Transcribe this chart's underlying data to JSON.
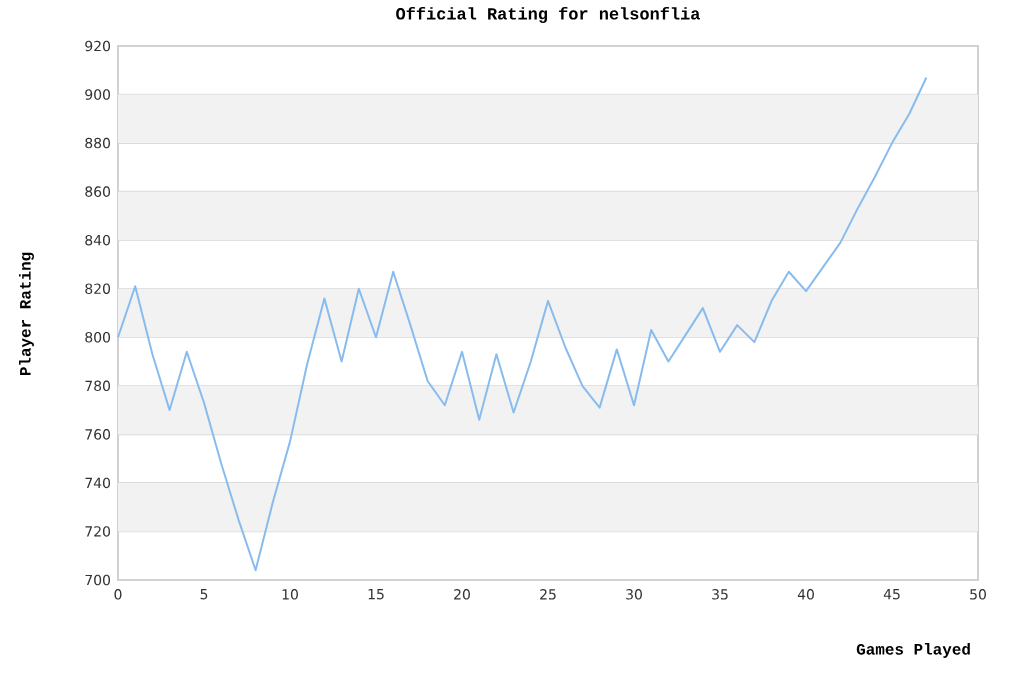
{
  "chart_data": {
    "type": "line",
    "title": "Official Rating for nelsonflia",
    "xlabel": "Games Played",
    "ylabel": "Player Rating",
    "x": [
      0,
      1,
      2,
      3,
      4,
      5,
      6,
      7,
      8,
      9,
      10,
      11,
      12,
      13,
      14,
      15,
      16,
      17,
      18,
      19,
      20,
      21,
      22,
      23,
      24,
      25,
      26,
      27,
      28,
      29,
      30,
      31,
      32,
      33,
      34,
      35,
      36,
      37,
      38,
      39,
      40,
      41,
      42,
      43,
      44,
      45,
      46,
      47
    ],
    "series": [
      {
        "color": "#88bbee",
        "values": [
          800,
          821,
          793,
          770,
          794,
          773,
          748,
          725,
          704,
          732,
          757,
          789,
          816,
          790,
          820,
          800,
          827,
          805,
          782,
          772,
          794,
          766,
          793,
          769,
          790,
          815,
          796,
          780,
          771,
          795,
          772,
          803,
          790,
          801,
          812,
          794,
          805,
          798,
          815,
          827,
          819,
          829,
          839,
          853,
          866,
          880,
          892,
          907
        ]
      }
    ],
    "xlim": [
      0,
      50
    ],
    "xticks": [
      0,
      5,
      10,
      15,
      20,
      25,
      30,
      35,
      40,
      45,
      50
    ],
    "ylim": [
      700,
      920
    ],
    "yticks": [
      700,
      720,
      740,
      760,
      780,
      800,
      820,
      840,
      860,
      880,
      900,
      920
    ],
    "grid": "y",
    "marker": "none",
    "line_style": "solid"
  }
}
